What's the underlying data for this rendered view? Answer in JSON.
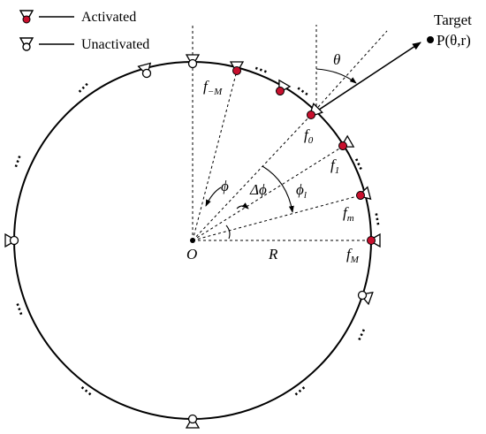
{
  "legend": {
    "activated_label": "Activated",
    "unactivated_label": "Unactivated"
  },
  "target": {
    "title": "Target",
    "point_label": "P(θ,r)"
  },
  "labels": {
    "origin": "O",
    "radius": "R",
    "theta": "θ",
    "phi": "ϕ",
    "delta_phi": "Δϕ",
    "phi_l": "ϕ",
    "phi_l_sub": "l",
    "f": "f",
    "f_neg_M_sub": "−M",
    "f_0_sub": "0",
    "f_1_sub": "1",
    "f_m_sub": "m",
    "f_M_sub": "M",
    "ellipsis": "⋯"
  },
  "colors": {
    "activated": "#c8102e",
    "line": "#000000"
  }
}
